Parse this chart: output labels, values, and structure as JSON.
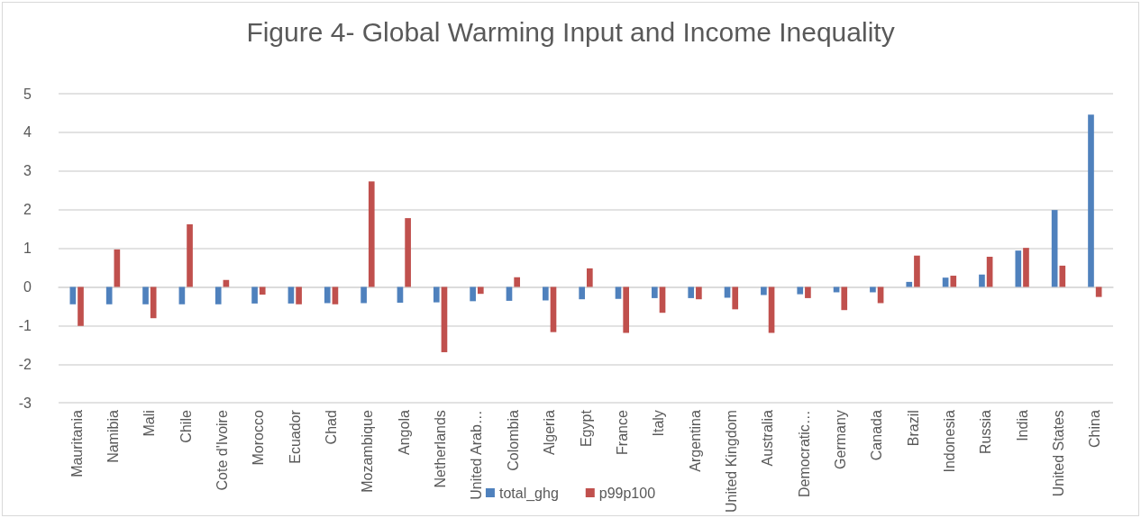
{
  "chart_data": {
    "type": "bar",
    "title": "Figure 4- Global Warming Input and Income Inequality",
    "categories": [
      "Mauritania",
      "Namibia",
      "Mali",
      "Chile",
      "Cote d'Ivoire",
      "Morocco",
      "Ecuador",
      "Chad",
      "Mozambique",
      "Angola",
      "Netherlands",
      "United Arab…",
      "Colombia",
      "Algeria",
      "Egypt",
      "France",
      "Italy",
      "Argentina",
      "United Kingdom",
      "Australia",
      "Democratic…",
      "Germany",
      "Canada",
      "Brazil",
      "Indonesia",
      "Russia",
      "India",
      "United States",
      "China"
    ],
    "series": [
      {
        "name": "total_ghg",
        "color": "#4f81bd",
        "values": [
          -0.45,
          -0.45,
          -0.45,
          -0.45,
          -0.45,
          -0.43,
          -0.43,
          -0.42,
          -0.42,
          -0.41,
          -0.4,
          -0.37,
          -0.36,
          -0.35,
          -0.32,
          -0.31,
          -0.29,
          -0.29,
          -0.28,
          -0.21,
          -0.19,
          -0.14,
          -0.14,
          0.13,
          0.24,
          0.32,
          0.94,
          1.99,
          4.46
        ]
      },
      {
        "name": "p99p100",
        "color": "#c0504d",
        "values": [
          -1.01,
          0.97,
          -0.81,
          1.62,
          0.18,
          -0.2,
          -0.45,
          -0.45,
          2.73,
          1.78,
          -1.69,
          -0.18,
          0.25,
          -1.17,
          0.48,
          -1.19,
          -0.67,
          -0.32,
          -0.58,
          -1.19,
          -0.29,
          -0.6,
          -0.42,
          0.81,
          0.29,
          0.78,
          1.01,
          0.55,
          -0.26
        ]
      }
    ],
    "ylim": [
      -3,
      5
    ],
    "yticks": [
      -3,
      -2,
      -1,
      0,
      1,
      2,
      3,
      4,
      5
    ],
    "grid": "y",
    "legend": "bottom"
  }
}
